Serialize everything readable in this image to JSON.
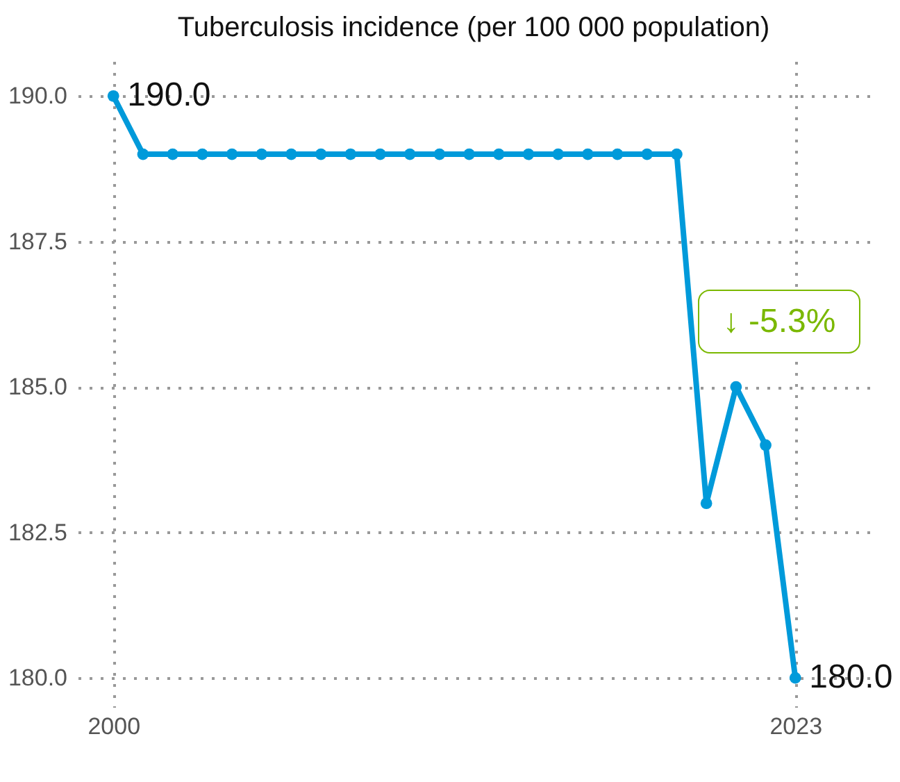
{
  "chart_data": {
    "type": "line",
    "title": "Tuberculosis incidence (per 100 000 population)",
    "x": [
      2000,
      2001,
      2002,
      2003,
      2004,
      2005,
      2006,
      2007,
      2008,
      2009,
      2010,
      2011,
      2012,
      2013,
      2014,
      2015,
      2016,
      2017,
      2018,
      2019,
      2020,
      2021,
      2022,
      2023
    ],
    "series": [
      {
        "color": "#009ada",
        "values": [
          190,
          189,
          189,
          189,
          189,
          189,
          189,
          189,
          189,
          189,
          189,
          189,
          189,
          189,
          189,
          189,
          189,
          189,
          189,
          189,
          183,
          185,
          184,
          180
        ],
        "value_labels": [
          "190.0",
          null,
          null,
          null,
          null,
          null,
          null,
          null,
          null,
          null,
          null,
          null,
          null,
          null,
          null,
          null,
          null,
          null,
          null,
          null,
          null,
          null,
          null,
          "180.0"
        ]
      }
    ],
    "annotations": [
      "↓ -5.3%"
    ],
    "xlim": [
      1998.8,
      2025.5
    ],
    "xticks": [
      2000,
      2023
    ],
    "ylim": [
      179.5,
      190.6
    ],
    "yticks": [
      {
        "value": 180,
        "label": "180.0"
      },
      {
        "value": 182.5,
        "label": "182.5"
      },
      {
        "value": 185,
        "label": "185.0"
      },
      {
        "value": 187.5,
        "label": "187.5"
      },
      {
        "value": 190,
        "label": "190.0"
      }
    ],
    "grid": true,
    "marker": "circle",
    "line_style": "solid"
  }
}
